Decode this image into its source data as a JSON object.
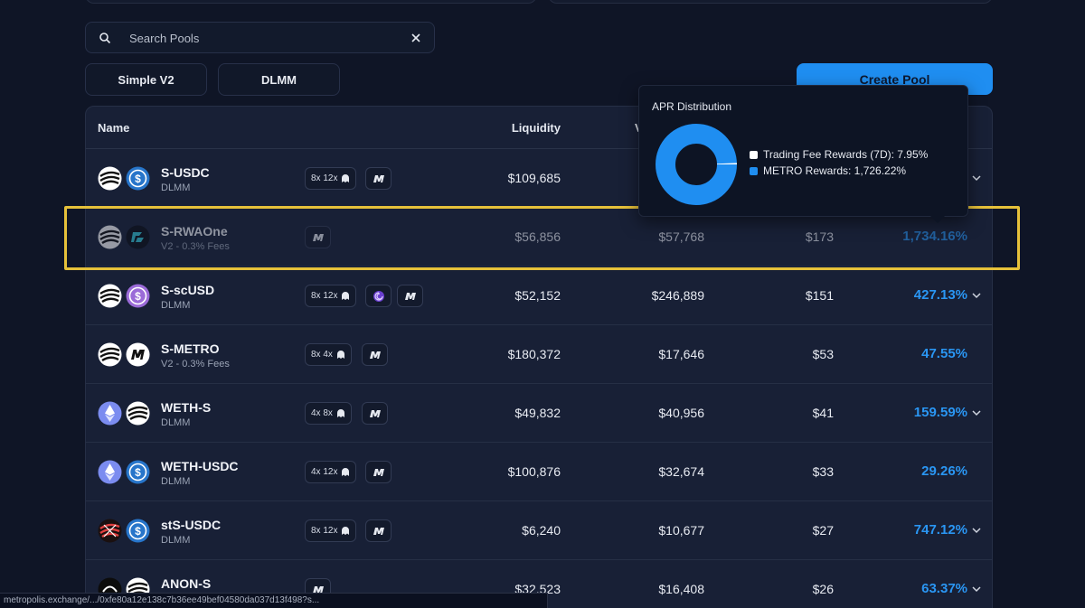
{
  "search": {
    "placeholder": "Search Pools"
  },
  "filters": [
    {
      "label": "Simple V2"
    },
    {
      "label": "DLMM"
    }
  ],
  "create_pool_label": "Create Pool",
  "table": {
    "headers": {
      "name": "Name",
      "liquidity": "Liquidity",
      "volume": "V"
    },
    "rows": [
      {
        "name": "S-USDC",
        "type": "DLMM",
        "boost": "8x 12x",
        "liquidity": "$109,685",
        "volume": "",
        "fees": "",
        "apr": ""
      },
      {
        "name": "S-RWAOne",
        "type": "V2 - 0.3% Fees",
        "boost": "",
        "liquidity": "$56,856",
        "volume": "$57,768",
        "fees": "$173",
        "apr": "1,734.16%"
      },
      {
        "name": "S-scUSD",
        "type": "DLMM",
        "boost": "8x 12x",
        "liquidity": "$52,152",
        "volume": "$246,889",
        "fees": "$151",
        "apr": "427.13%"
      },
      {
        "name": "S-METRO",
        "type": "V2 - 0.3% Fees",
        "boost": "8x 4x",
        "liquidity": "$180,372",
        "volume": "$17,646",
        "fees": "$53",
        "apr": "47.55%"
      },
      {
        "name": "WETH-S",
        "type": "DLMM",
        "boost": "4x 8x",
        "liquidity": "$49,832",
        "volume": "$40,956",
        "fees": "$41",
        "apr": "159.59%"
      },
      {
        "name": "WETH-USDC",
        "type": "DLMM",
        "boost": "4x 12x",
        "liquidity": "$100,876",
        "volume": "$32,674",
        "fees": "$33",
        "apr": "29.26%"
      },
      {
        "name": "stS-USDC",
        "type": "DLMM",
        "boost": "8x 12x",
        "liquidity": "$6,240",
        "volume": "$10,677",
        "fees": "$27",
        "apr": "747.12%"
      },
      {
        "name": "ANON-S",
        "type": "",
        "boost": "",
        "liquidity": "$32,523",
        "volume": "$16,408",
        "fees": "$26",
        "apr": "63.37%"
      }
    ]
  },
  "tooltip": {
    "title": "APR Distribution",
    "items": [
      {
        "label": "Trading Fee Rewards (7D): 7.95%",
        "value": 7.95,
        "color": "#ffffff"
      },
      {
        "label": "METRO Rewards: 1,726.22%",
        "value": 1726.22,
        "color": "#1f8ef1"
      }
    ]
  },
  "status_url": "metropolis.exchange/.../0xfe80a12e138c7b36ee49bef04580da037d13f498?s...",
  "icons": [
    "search-icon",
    "clear-icon",
    "chevron-down-icon",
    "sonic-token-icon",
    "usdc-token-icon",
    "rwaone-token-icon",
    "scusd-token-icon",
    "metro-token-icon",
    "weth-token-icon",
    "sts-token-icon",
    "anon-token-icon",
    "ghost-icon",
    "metro-badge-icon",
    "spiral-icon"
  ],
  "colors": {
    "accent": "#1f8ef1",
    "highlight": "#e6c13a",
    "background": "#0f1526"
  }
}
